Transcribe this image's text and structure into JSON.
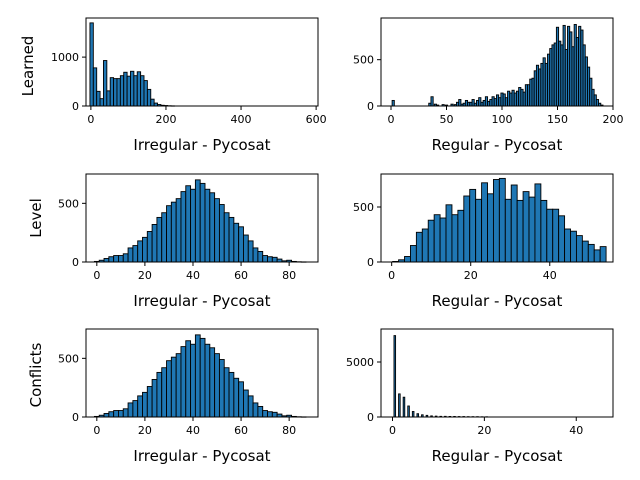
{
  "row_labels": [
    "Learned",
    "Level",
    "Conflicts"
  ],
  "chart_data": [
    {
      "type": "bar",
      "xlabel": "Irregular - Pycosat",
      "xlim": [
        -13,
        605
      ],
      "ylim": [
        0,
        1800
      ],
      "xticks": [
        0,
        200,
        400,
        600
      ],
      "yticks": [
        0,
        1000
      ],
      "x": [
        2,
        11,
        20,
        29,
        38,
        47,
        56,
        65,
        74,
        83,
        92,
        101,
        110,
        119,
        128,
        137,
        146,
        155,
        164,
        173,
        182,
        191,
        200,
        209,
        218
      ],
      "values": [
        1700,
        780,
        300,
        150,
        930,
        310,
        580,
        560,
        560,
        620,
        690,
        610,
        710,
        620,
        700,
        620,
        520,
        340,
        140,
        60,
        30,
        15,
        10,
        5,
        3
      ],
      "bin_width": 9
    },
    {
      "type": "bar",
      "xlabel": "Regular - Pycosat",
      "xlim": [
        -9,
        200
      ],
      "ylim": [
        0,
        950
      ],
      "xticks": [
        0,
        50,
        100,
        150,
        200
      ],
      "yticks": [
        0,
        500
      ],
      "x": [
        2,
        35,
        37,
        40,
        42,
        47,
        50,
        55,
        58,
        60,
        62,
        64,
        66,
        68,
        70,
        72,
        74,
        76,
        78,
        80,
        82,
        84,
        86,
        88,
        90,
        92,
        94,
        96,
        98,
        100,
        102,
        104,
        106,
        108,
        110,
        112,
        114,
        116,
        118,
        120,
        122,
        124,
        126,
        128,
        130,
        132,
        134,
        136,
        138,
        140,
        142,
        144,
        146,
        148,
        150,
        152,
        154,
        156,
        158,
        160,
        162,
        164,
        166,
        168,
        170,
        172,
        174,
        176,
        178,
        180,
        182,
        184,
        186,
        188,
        190
      ],
      "values": [
        60,
        30,
        100,
        20,
        10,
        15,
        10,
        20,
        15,
        40,
        70,
        20,
        30,
        60,
        40,
        40,
        70,
        30,
        60,
        90,
        40,
        60,
        100,
        50,
        70,
        100,
        80,
        120,
        90,
        140,
        130,
        90,
        160,
        140,
        170,
        140,
        160,
        200,
        180,
        150,
        230,
        230,
        290,
        300,
        380,
        440,
        400,
        460,
        520,
        460,
        560,
        620,
        660,
        680,
        850,
        700,
        660,
        870,
        610,
        860,
        800,
        640,
        880,
        740,
        860,
        820,
        660,
        530,
        420,
        300,
        180,
        120,
        70,
        30,
        10
      ],
      "bin_width": 2
    },
    {
      "type": "bar",
      "xlabel": "Irregular - Pycosat",
      "xlim": [
        -4.5,
        92
      ],
      "ylim": [
        0,
        750
      ],
      "xticks": [
        0,
        20,
        40,
        60,
        80
      ],
      "yticks": [
        0,
        500
      ],
      "x": [
        0,
        2,
        4,
        6,
        8,
        10,
        12,
        14,
        16,
        18,
        20,
        22,
        24,
        26,
        28,
        30,
        32,
        34,
        36,
        38,
        40,
        42,
        44,
        46,
        48,
        50,
        52,
        54,
        56,
        58,
        60,
        62,
        64,
        66,
        68,
        70,
        72,
        74,
        76,
        78,
        80,
        82,
        84,
        86
      ],
      "values": [
        5,
        15,
        30,
        45,
        55,
        55,
        70,
        120,
        140,
        180,
        210,
        260,
        320,
        380,
        420,
        480,
        510,
        540,
        600,
        650,
        620,
        700,
        670,
        620,
        590,
        540,
        490,
        420,
        380,
        330,
        300,
        230,
        180,
        120,
        90,
        55,
        45,
        40,
        25,
        10,
        15,
        5,
        2,
        1
      ],
      "bin_width": 2
    },
    {
      "type": "bar",
      "xlabel": "Regular - Pycosat",
      "xlim": [
        -2.7,
        56
      ],
      "ylim": [
        0,
        800
      ],
      "xticks": [
        0,
        20,
        40
      ],
      "yticks": [
        0,
        500
      ],
      "x": [
        1,
        2.5,
        4,
        5.5,
        7,
        8.5,
        10,
        11.5,
        13,
        14.5,
        16,
        17.5,
        19,
        20.5,
        22,
        23.5,
        25,
        26.5,
        28,
        29.5,
        31,
        32.5,
        34,
        35.5,
        37,
        38.5,
        40,
        41.5,
        43,
        44.5,
        46,
        47.5,
        49,
        50.5,
        52,
        53.5
      ],
      "values": [
        5,
        20,
        50,
        150,
        270,
        300,
        380,
        430,
        400,
        520,
        430,
        470,
        600,
        660,
        570,
        720,
        620,
        750,
        760,
        570,
        700,
        560,
        640,
        590,
        710,
        560,
        480,
        480,
        420,
        300,
        280,
        240,
        190,
        160,
        110,
        140
      ],
      "bin_width": 1.5
    },
    {
      "type": "bar",
      "xlabel": "Irregular - Pycosat",
      "xlim": [
        -4.5,
        92
      ],
      "ylim": [
        0,
        750
      ],
      "xticks": [
        0,
        20,
        40,
        60,
        80
      ],
      "yticks": [
        0,
        500
      ],
      "x": [
        0,
        2,
        4,
        6,
        8,
        10,
        12,
        14,
        16,
        18,
        20,
        22,
        24,
        26,
        28,
        30,
        32,
        34,
        36,
        38,
        40,
        42,
        44,
        46,
        48,
        50,
        52,
        54,
        56,
        58,
        60,
        62,
        64,
        66,
        68,
        70,
        72,
        74,
        76,
        78,
        80,
        82,
        84,
        86
      ],
      "values": [
        5,
        15,
        30,
        45,
        55,
        55,
        70,
        120,
        140,
        180,
        210,
        260,
        320,
        380,
        420,
        480,
        510,
        540,
        600,
        650,
        620,
        700,
        670,
        620,
        590,
        540,
        490,
        420,
        380,
        330,
        300,
        230,
        180,
        120,
        90,
        55,
        45,
        40,
        25,
        10,
        15,
        5,
        2,
        1
      ],
      "bin_width": 2
    },
    {
      "type": "bar",
      "xlabel": "Regular - Pycosat",
      "xlim": [
        -2.5,
        48
      ],
      "ylim": [
        0,
        8000
      ],
      "xticks": [
        0,
        20,
        40
      ],
      "yticks": [
        0,
        5000
      ],
      "x": [
        0.5,
        1.5,
        2.5,
        3.5,
        4.5,
        5.5,
        6.5,
        7.5,
        8.5,
        9.5,
        10.5,
        11.5,
        12.5,
        13.5,
        14.5,
        15.5,
        16.5,
        17.5,
        18.5,
        19.5,
        20.5
      ],
      "values": [
        7400,
        2100,
        1800,
        1000,
        500,
        300,
        200,
        150,
        100,
        80,
        60,
        60,
        50,
        50,
        40,
        40,
        30,
        30,
        30,
        20,
        20
      ],
      "bin_width": 0.35
    }
  ]
}
